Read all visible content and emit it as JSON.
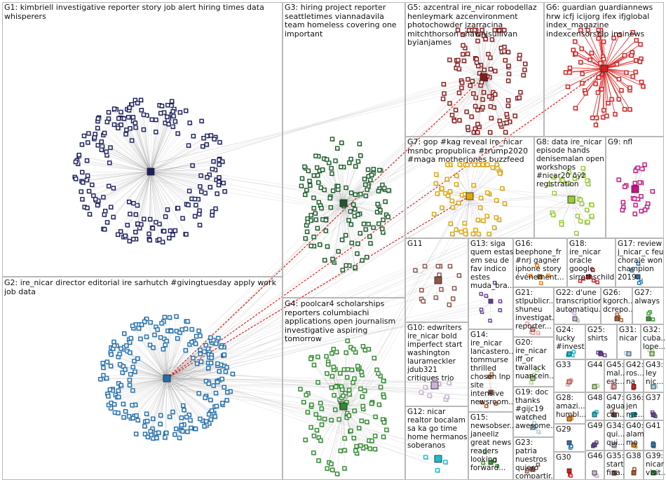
{
  "groups": [
    {
      "id": "G1",
      "text": "G1: kimbriell investigative reporter story job alert hiring times data whisperers",
      "color": "#1b1f5e"
    },
    {
      "id": "G2",
      "text": "G2: ire_nicar director editorial ire sarhutch #givingtuesday apply work job data",
      "color": "#1f6fb0"
    },
    {
      "id": "G3",
      "text": "G3: hiring project reporter seattletimes viannadavila team homeless covering one important",
      "color": "#1a5c2a"
    },
    {
      "id": "G4",
      "text": "G4: poolcar4 scholarships reporters columbiachi applications open journalism investigative aspiring tomorrow",
      "color": "#2e8b2e"
    },
    {
      "id": "G5",
      "text": "G5: azcentral ire_nicar robodellaz henleymark azcenvironment photochowder jzarracina mitchthorson shawnjsullivan byianjames",
      "color": "#8b1a1a"
    },
    {
      "id": "G6",
      "text": "G6: guardian guardiannews hrw icfj icijorg ifex ifjglobal index_magazine indexcensorship insinews",
      "color": "#d42020"
    },
    {
      "id": "G7",
      "text": "G7: gop #kag reveal ire_nicar msnbc propublica #trump2020 #maga motherjones buzzfeed",
      "color": "#e0a800"
    },
    {
      "id": "G8",
      "text": "G8: data ire_nicar episode hands denisemalan open workshops #nicar20 ðÿž registration",
      "color": "#9acd32"
    },
    {
      "id": "G9",
      "text": "G9: nfl",
      "color": "#c71585"
    },
    {
      "id": "G10",
      "text": "G10: edwriters ire_nicar bold imperfect start washington laurameckler jdub321 critiques trio"
    },
    {
      "id": "G11",
      "text": "G11"
    },
    {
      "id": "G12",
      "text": "G12: nicar realtor bocalam sa ka go time home hermanos soberanos"
    },
    {
      "id": "G13",
      "text": "G13: siga quem estas em seu de fav indico estes muda_bra..."
    },
    {
      "id": "G14",
      "text": "G14: ire_nicar lancastero... tommurse thrilled chosen lnp site intensive newsroom..."
    },
    {
      "id": "G15",
      "text": "G15: newsobser... janeeliz great news readers looking forward..."
    },
    {
      "id": "G16",
      "text": "G16: beephone_fr #nrj gagner iphone story événement..."
    },
    {
      "id": "G17",
      "text": "G17: review j_nicar_c feu chorale won champion 2019..."
    },
    {
      "id": "G18",
      "text": "G18: ire_nicar oracle google sirrothschild"
    },
    {
      "id": "G19",
      "text": "G19: doc thanks #gijc19 watched awesome..."
    },
    {
      "id": "G20",
      "text": "G20: ire_nicar iff_or twallack nuancein..."
    },
    {
      "id": "G21",
      "text": "G21: stlpublicr... shuneu investigat... reporter..."
    },
    {
      "id": "G22",
      "text": "G22: d'une transcription automatiqu..."
    },
    {
      "id": "G23",
      "text": "G23: patria nuestros quiero compartir..."
    },
    {
      "id": "G24",
      "text": "G24: lucky #invest..."
    },
    {
      "id": "G25",
      "text": "G25: shirts"
    },
    {
      "id": "G26",
      "text": "G26: kgorch... dcrepo..."
    },
    {
      "id": "G27",
      "text": "G27: always"
    },
    {
      "id": "G28",
      "text": "G28: amazi... humbl..."
    },
    {
      "id": "G29",
      "text": "G29"
    },
    {
      "id": "G30",
      "text": "G30"
    },
    {
      "id": "G31",
      "text": "G31: nicar"
    },
    {
      "id": "G32",
      "text": "G32: cuba... lope..."
    },
    {
      "id": "G33",
      "text": "G33"
    },
    {
      "id": "G34",
      "text": "G34: qui... qui..."
    },
    {
      "id": "G35",
      "text": "G35: start fina..."
    },
    {
      "id": "G36",
      "text": "G36: jen me..."
    },
    {
      "id": "G37",
      "text": "G37"
    },
    {
      "id": "G38",
      "text": "G38"
    },
    {
      "id": "G39",
      "text": "G39: nicar visit..."
    },
    {
      "id": "G40",
      "text": "G40: alam mo"
    },
    {
      "id": "G41",
      "text": "G41"
    },
    {
      "id": "G42",
      "text": "G42: ros... na"
    },
    {
      "id": "G43",
      "text": "G43: ley nic..."
    },
    {
      "id": "G44",
      "text": "G44"
    },
    {
      "id": "G45",
      "text": "G45: mal... est..."
    },
    {
      "id": "G46",
      "text": "G46"
    },
    {
      "id": "G47",
      "text": "G47: agua can..."
    },
    {
      "id": "G48",
      "text": "G48"
    },
    {
      "id": "G49",
      "text": "G49"
    }
  ],
  "colors": {
    "edge": "#9a9a9a",
    "highlight_edge": "#e02020",
    "panel_border": "#b8b8b8",
    "background": "#ffffff"
  }
}
